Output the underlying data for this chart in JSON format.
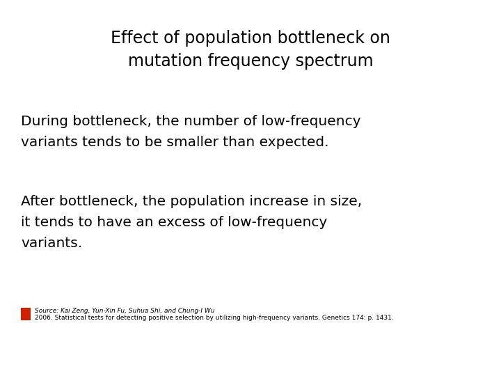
{
  "title_line1": "Effect of population bottleneck on",
  "title_line2": "mutation frequency spectrum",
  "para1_line1": "During bottleneck, the number of low-frequency",
  "para1_line2": "variants tends to be smaller than expected.",
  "para2_line1": "After bottleneck, the population increase in size,",
  "para2_line2": "it tends to have an excess of low-frequency",
  "para2_line3": "variants.",
  "source_line1": "Source: Kai Zeng, Yun-Xin Fu, Suhua Shi, and Chung-I Wu",
  "source_line2": "2006. Statistical tests for detecting positive selection by utilizing high-frequency variants. Genetics 174: p. 1431.",
  "bg_color": "#ffffff",
  "title_color": "#000000",
  "body_color": "#000000",
  "source_color": "#000000",
  "title_fontsize": 17,
  "body_fontsize": 14.5,
  "source_fontsize": 6.5,
  "icon_color": "#cc2200"
}
